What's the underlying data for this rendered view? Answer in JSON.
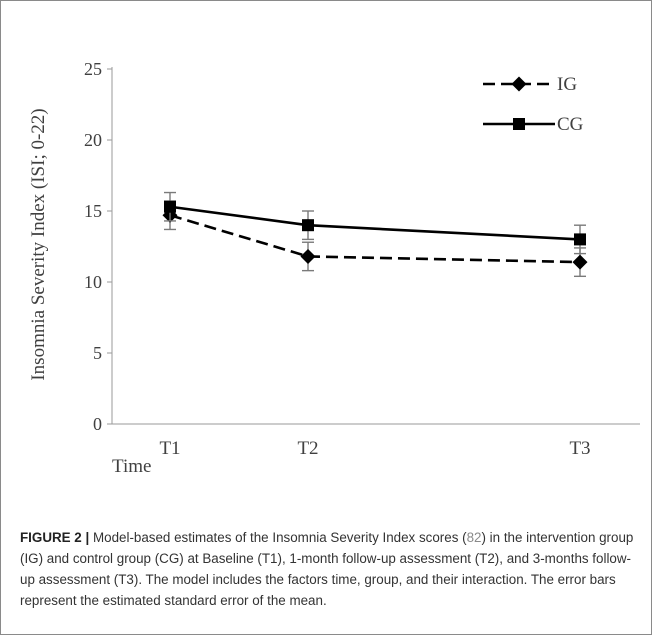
{
  "chart_data": {
    "type": "line",
    "categories": [
      "T1",
      "T2",
      "T3"
    ],
    "x_title": "Time",
    "ylabel": "Insomnia Severity Index (ISI; 0-22)",
    "ylim": [
      0,
      25
    ],
    "yticks": [
      0,
      5,
      10,
      15,
      20,
      25
    ],
    "grid": false,
    "legend_position": "top-right",
    "series": [
      {
        "name": "IG",
        "values": [
          14.7,
          11.8,
          11.4
        ],
        "error": [
          1.0,
          1.0,
          1.0
        ],
        "line_style": "dashed",
        "marker": "diamond",
        "color": "#000000"
      },
      {
        "name": "CG",
        "values": [
          15.3,
          14.0,
          13.0
        ],
        "error": [
          1.0,
          1.0,
          1.0
        ],
        "line_style": "solid",
        "marker": "square",
        "color": "#000000"
      }
    ]
  },
  "caption": {
    "label": "FIGURE 2 |",
    "text_before_ref": "Model-based estimates of the Insomnia Severity Index scores (",
    "ref": "82",
    "text_after_ref": ") in the intervention group (IG) and control group (CG) at Baseline (T1), 1-month follow-up assessment (T2), and 3-months follow-up assessment (T3). The model includes the factors time, group, and their interaction. The error bars represent the estimated standard error of the mean."
  },
  "colors": {
    "axis": "#9a9a9a",
    "errorbar": "#7a7a7a",
    "text": "#404040",
    "series": "#000000"
  }
}
